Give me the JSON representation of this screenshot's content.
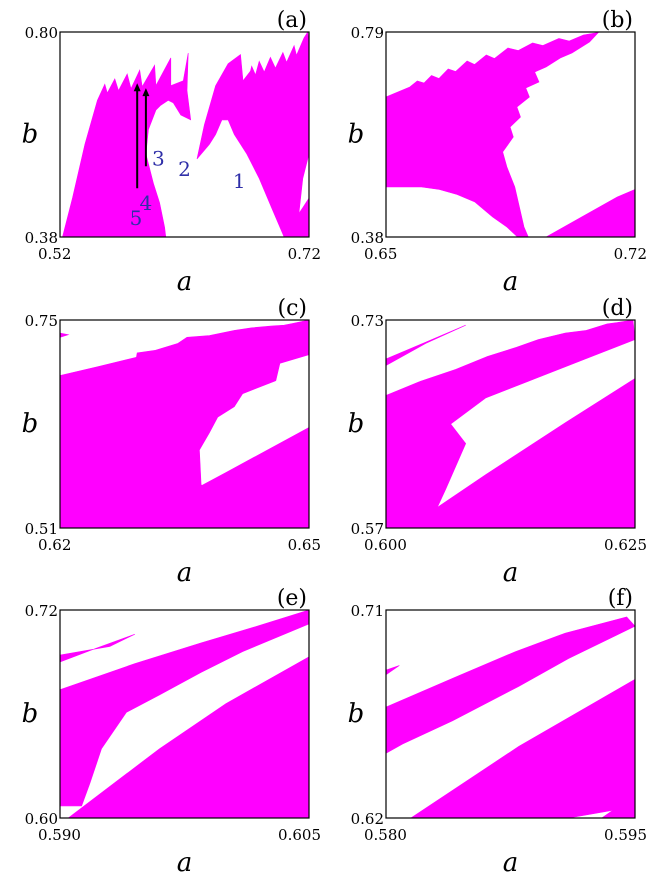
{
  "chart_data": [
    {
      "type": "area",
      "panel": "(a)",
      "xlabel": "a",
      "ylabel": "b",
      "xlim": [
        0.52,
        0.72
      ],
      "ylim": [
        0.38,
        0.8
      ],
      "x_ticks": [
        "0.52",
        "0.72"
      ],
      "y_ticks": [
        "0.38",
        "0.80"
      ],
      "fill_color": "#ff00ff",
      "annotations": [
        "1",
        "2",
        "3",
        "4",
        "5"
      ],
      "regions": [
        [
          [
            0.522,
            0.38
          ],
          [
            0.53,
            0.46
          ],
          [
            0.54,
            0.57
          ],
          [
            0.55,
            0.66
          ],
          [
            0.556,
            0.693
          ],
          [
            0.558,
            0.675
          ],
          [
            0.564,
            0.704
          ],
          [
            0.567,
            0.68
          ],
          [
            0.574,
            0.714
          ],
          [
            0.577,
            0.684
          ],
          [
            0.584,
            0.722
          ],
          [
            0.586,
            0.688
          ],
          [
            0.596,
            0.732
          ],
          [
            0.597,
            0.69
          ],
          [
            0.609,
            0.747
          ],
          [
            0.609,
            0.69
          ],
          [
            0.619,
            0.7
          ],
          [
            0.623,
            0.757
          ],
          [
            0.622,
            0.68
          ],
          [
            0.625,
            0.62
          ],
          [
            0.617,
            0.63
          ],
          [
            0.611,
            0.655
          ],
          [
            0.607,
            0.66
          ],
          [
            0.601,
            0.65
          ],
          [
            0.597,
            0.64
          ],
          [
            0.591,
            0.6
          ],
          [
            0.589,
            0.55
          ],
          [
            0.595,
            0.49
          ],
          [
            0.6,
            0.45
          ],
          [
            0.604,
            0.4
          ],
          [
            0.605,
            0.38
          ]
        ],
        [
          [
            0.63,
            0.54
          ],
          [
            0.636,
            0.61
          ],
          [
            0.645,
            0.69
          ],
          [
            0.655,
            0.735
          ],
          [
            0.665,
            0.754
          ],
          [
            0.667,
            0.7
          ],
          [
            0.673,
            0.72
          ],
          [
            0.674,
            0.73
          ],
          [
            0.677,
            0.712
          ],
          [
            0.68,
            0.74
          ],
          [
            0.684,
            0.718
          ],
          [
            0.689,
            0.748
          ],
          [
            0.693,
            0.726
          ],
          [
            0.699,
            0.758
          ],
          [
            0.702,
            0.738
          ],
          [
            0.708,
            0.772
          ],
          [
            0.71,
            0.752
          ],
          [
            0.716,
            0.788
          ],
          [
            0.719,
            0.8
          ],
          [
            0.72,
            0.77
          ],
          [
            0.72,
            0.55
          ],
          [
            0.715,
            0.5
          ],
          [
            0.712,
            0.43
          ],
          [
            0.71,
            0.4
          ],
          [
            0.709,
            0.38
          ],
          [
            0.7,
            0.38
          ],
          [
            0.69,
            0.44
          ],
          [
            0.68,
            0.5
          ],
          [
            0.67,
            0.55
          ],
          [
            0.66,
            0.59
          ],
          [
            0.655,
            0.62
          ],
          [
            0.65,
            0.62
          ],
          [
            0.645,
            0.59
          ],
          [
            0.64,
            0.57
          ]
        ],
        [
          [
            0.72,
            0.38
          ],
          [
            0.72,
            0.46
          ],
          [
            0.715,
            0.44
          ],
          [
            0.707,
            0.41
          ],
          [
            0.701,
            0.38
          ]
        ]
      ]
    },
    {
      "type": "area",
      "panel": "(b)",
      "xlabel": "a",
      "ylabel": "b",
      "xlim": [
        0.65,
        0.72
      ],
      "ylim": [
        0.38,
        0.79
      ],
      "x_ticks": [
        "0.65",
        "0.72"
      ],
      "y_ticks": [
        "0.38",
        "0.79"
      ],
      "fill_color": "#ff00ff",
      "regions": [
        [
          [
            0.65,
            0.48
          ],
          [
            0.65,
            0.66
          ],
          [
            0.6567,
            0.68
          ],
          [
            0.6588,
            0.692
          ],
          [
            0.6607,
            0.688
          ],
          [
            0.6628,
            0.703
          ],
          [
            0.6649,
            0.697
          ],
          [
            0.6675,
            0.716
          ],
          [
            0.6696,
            0.711
          ],
          [
            0.6728,
            0.732
          ],
          [
            0.6749,
            0.725
          ],
          [
            0.6782,
            0.744
          ],
          [
            0.6805,
            0.737
          ],
          [
            0.6843,
            0.758
          ],
          [
            0.6872,
            0.753
          ],
          [
            0.6912,
            0.768
          ],
          [
            0.6941,
            0.763
          ],
          [
            0.6986,
            0.777
          ],
          [
            0.7015,
            0.772
          ],
          [
            0.7055,
            0.784
          ],
          [
            0.7097,
            0.789
          ],
          [
            0.7072,
            0.77
          ],
          [
            0.7023,
            0.748
          ],
          [
            0.699,
            0.738
          ],
          [
            0.695,
            0.72
          ],
          [
            0.6918,
            0.71
          ],
          [
            0.693,
            0.69
          ],
          [
            0.6893,
            0.678
          ],
          [
            0.6903,
            0.66
          ],
          [
            0.6868,
            0.64
          ],
          [
            0.6878,
            0.62
          ],
          [
            0.6849,
            0.6
          ],
          [
            0.6858,
            0.58
          ],
          [
            0.6828,
            0.55
          ],
          [
            0.684,
            0.52
          ],
          [
            0.6862,
            0.48
          ],
          [
            0.6875,
            0.44
          ],
          [
            0.6888,
            0.4
          ],
          [
            0.69,
            0.38
          ],
          [
            0.687,
            0.38
          ],
          [
            0.684,
            0.4
          ],
          [
            0.68,
            0.42
          ],
          [
            0.675,
            0.45
          ],
          [
            0.67,
            0.465
          ],
          [
            0.665,
            0.475
          ],
          [
            0.66,
            0.48
          ]
        ],
        [
          [
            0.695,
            0.38
          ],
          [
            0.705,
            0.42
          ],
          [
            0.715,
            0.46
          ],
          [
            0.72,
            0.475
          ],
          [
            0.72,
            0.38
          ]
        ]
      ]
    },
    {
      "type": "area",
      "panel": "(c)",
      "xlabel": "a",
      "ylabel": "b",
      "xlim": [
        0.62,
        0.65
      ],
      "ylim": [
        0.51,
        0.75
      ],
      "x_ticks": [
        "0.62",
        "0.65"
      ],
      "y_ticks": [
        "0.51",
        "0.75"
      ],
      "fill_color": "#ff00ff",
      "regions": [
        [
          [
            0.62,
            0.51
          ],
          [
            0.62,
            0.686
          ],
          [
            0.6245,
            0.696
          ],
          [
            0.6292,
            0.707
          ],
          [
            0.6293,
            0.712
          ],
          [
            0.6315,
            0.715
          ],
          [
            0.6342,
            0.723
          ],
          [
            0.6353,
            0.73
          ],
          [
            0.638,
            0.732
          ],
          [
            0.641,
            0.738
          ],
          [
            0.6431,
            0.741
          ],
          [
            0.6454,
            0.743
          ],
          [
            0.647,
            0.744
          ],
          [
            0.648,
            0.746
          ],
          [
            0.65,
            0.75
          ],
          [
            0.65,
            0.71
          ],
          [
            0.6465,
            0.7
          ],
          [
            0.646,
            0.68
          ],
          [
            0.642,
            0.665
          ],
          [
            0.641,
            0.65
          ],
          [
            0.639,
            0.638
          ],
          [
            0.638,
            0.62
          ],
          [
            0.6368,
            0.6
          ],
          [
            0.637,
            0.56
          ],
          [
            0.639,
            0.54
          ],
          [
            0.6418,
            0.52
          ],
          [
            0.6432,
            0.51
          ]
        ],
        [
          [
            0.6276,
            0.51
          ],
          [
            0.633,
            0.538
          ],
          [
            0.64,
            0.574
          ],
          [
            0.645,
            0.6
          ],
          [
            0.65,
            0.626
          ],
          [
            0.65,
            0.51
          ]
        ],
        [
          [
            0.62,
            0.73
          ],
          [
            0.621,
            0.733
          ],
          [
            0.62,
            0.735
          ]
        ]
      ]
    },
    {
      "type": "area",
      "panel": "(d)",
      "xlabel": "a",
      "ylabel": "b",
      "xlim": [
        0.6,
        0.625
      ],
      "ylim": [
        0.57,
        0.73
      ],
      "x_ticks": [
        "0.600",
        "0.625"
      ],
      "y_ticks": [
        "0.57",
        "0.73"
      ],
      "fill_color": "#ff00ff",
      "regions": [
        [
          [
            0.6,
            0.57
          ],
          [
            0.6,
            0.672
          ],
          [
            0.6035,
            0.683
          ],
          [
            0.607,
            0.692
          ],
          [
            0.6102,
            0.702
          ],
          [
            0.6131,
            0.709
          ],
          [
            0.6153,
            0.715
          ],
          [
            0.618,
            0.72
          ],
          [
            0.6201,
            0.722
          ],
          [
            0.6222,
            0.727
          ],
          [
            0.6232,
            0.728
          ],
          [
            0.6248,
            0.73
          ],
          [
            0.625,
            0.715
          ],
          [
            0.62,
            0.7
          ],
          [
            0.615,
            0.685
          ],
          [
            0.61,
            0.67
          ],
          [
            0.6065,
            0.65
          ],
          [
            0.608,
            0.635
          ],
          [
            0.606,
            0.6
          ],
          [
            0.6042,
            0.57
          ]
        ],
        [
          [
            0.6021,
            0.57
          ],
          [
            0.61,
            0.611
          ],
          [
            0.618,
            0.651
          ],
          [
            0.625,
            0.685
          ],
          [
            0.625,
            0.57
          ]
        ],
        [
          [
            0.6,
            0.695
          ],
          [
            0.604,
            0.712
          ],
          [
            0.608,
            0.726
          ],
          [
            0.604,
            0.713
          ],
          [
            0.6,
            0.7
          ]
        ]
      ]
    },
    {
      "type": "area",
      "panel": "(e)",
      "xlabel": "a",
      "ylabel": "b",
      "xlim": [
        0.59,
        0.605
      ],
      "ylim": [
        0.6,
        0.72
      ],
      "x_ticks": [
        "0.590",
        "0.605"
      ],
      "y_ticks": [
        "0.60",
        "0.72"
      ],
      "fill_color": "#ff00ff",
      "regions": [
        [
          [
            0.59,
            0.607
          ],
          [
            0.59,
            0.674
          ],
          [
            0.5945,
            0.689
          ],
          [
            0.5985,
            0.701
          ],
          [
            0.602,
            0.711
          ],
          [
            0.605,
            0.72
          ],
          [
            0.605,
            0.712
          ],
          [
            0.601,
            0.696
          ],
          [
            0.5985,
            0.684
          ],
          [
            0.596,
            0.671
          ],
          [
            0.594,
            0.661
          ],
          [
            0.5925,
            0.64
          ],
          [
            0.5918,
            0.62
          ],
          [
            0.5913,
            0.607
          ]
        ],
        [
          [
            0.5905,
            0.6
          ],
          [
            0.596,
            0.64
          ],
          [
            0.6,
            0.666
          ],
          [
            0.605,
            0.693
          ],
          [
            0.605,
            0.6
          ]
        ],
        [
          [
            0.59,
            0.69
          ],
          [
            0.5922,
            0.698
          ],
          [
            0.5945,
            0.706
          ],
          [
            0.593,
            0.699
          ],
          [
            0.59,
            0.694
          ]
        ]
      ]
    },
    {
      "type": "area",
      "panel": "(f)",
      "xlabel": "a",
      "ylabel": "b",
      "xlim": [
        0.58,
        0.595
      ],
      "ylim": [
        0.62,
        0.71
      ],
      "x_ticks": [
        "0.580",
        "0.595"
      ],
      "y_ticks": [
        "0.62",
        "0.71"
      ],
      "fill_color": "#ff00ff",
      "regions": [
        [
          [
            0.58,
            0.648
          ],
          [
            0.58,
            0.668
          ],
          [
            0.5842,
            0.681
          ],
          [
            0.5878,
            0.692
          ],
          [
            0.5908,
            0.7
          ],
          [
            0.5945,
            0.707
          ],
          [
            0.595,
            0.703
          ],
          [
            0.591,
            0.689
          ],
          [
            0.588,
            0.677
          ],
          [
            0.584,
            0.662
          ],
          [
            0.581,
            0.652
          ],
          [
            0.58,
            0.648
          ]
        ],
        [
          [
            0.5815,
            0.62
          ],
          [
            0.588,
            0.651
          ],
          [
            0.595,
            0.68
          ],
          [
            0.595,
            0.625
          ],
          [
            0.591,
            0.62
          ]
        ],
        [
          [
            0.58,
            0.682
          ],
          [
            0.5808,
            0.686
          ],
          [
            0.58,
            0.684
          ]
        ],
        [
          [
            0.593,
            0.62
          ],
          [
            0.595,
            0.63
          ],
          [
            0.595,
            0.62
          ]
        ]
      ]
    }
  ]
}
